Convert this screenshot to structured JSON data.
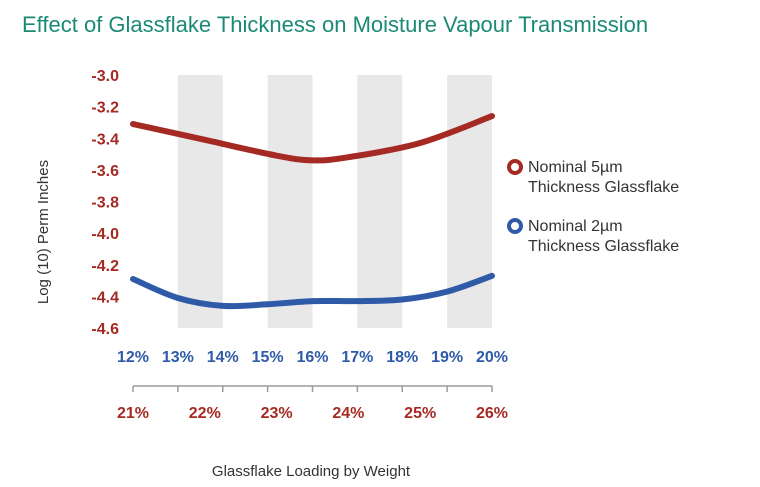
{
  "chart_data": {
    "type": "line",
    "title": "Effect of Glassflake Thickness on Moisture Vapour Transmission",
    "xlabel": "Glassflake Loading by Weight",
    "ylabel": "Log (10) Perm Inches",
    "ylim": [
      -4.6,
      -3.0
    ],
    "yticks": [
      "-3.0",
      "-3.2",
      "-3.4",
      "-3.6",
      "-3.8",
      "-4.0",
      "-4.2",
      "-4.4",
      "-4.6"
    ],
    "x_primary_ticks": [
      "12%",
      "13%",
      "14%",
      "15%",
      "16%",
      "17%",
      "18%",
      "19%",
      "20%"
    ],
    "x_secondary_ticks": [
      "21%",
      "22%",
      "23%",
      "24%",
      "25%",
      "26%"
    ],
    "grid": "alternating vertical bands",
    "legend_position": "right",
    "series": [
      {
        "name": "Nominal 5µm Thickness Glassflake",
        "name_lines": [
          "Nominal 5µm",
          "Thickness Glassflake"
        ],
        "color": "#a52a23",
        "x_axis": "secondary",
        "x": [
          21,
          22,
          23,
          23.5,
          24,
          25,
          26
        ],
        "y": [
          -3.31,
          -3.41,
          -3.51,
          -3.54,
          -3.52,
          -3.43,
          -3.26
        ]
      },
      {
        "name": "Nominal 2µm Thickness Glassflake",
        "name_lines": [
          "Nominal 2µm",
          "Thickness Glassflake"
        ],
        "color": "#2e5aa8",
        "x_axis": "primary",
        "x": [
          12,
          13,
          14,
          15,
          16,
          17,
          18,
          19,
          20
        ],
        "y": [
          -4.29,
          -4.41,
          -4.46,
          -4.45,
          -4.43,
          -4.43,
          -4.42,
          -4.37,
          -4.27
        ]
      }
    ],
    "colors": {
      "primary_axis": "#2e5aa8",
      "secondary_axis": "#a52a23",
      "y_ticks": "#a52a23",
      "title": "#1b8a74",
      "band": "#e8e8e8"
    }
  }
}
